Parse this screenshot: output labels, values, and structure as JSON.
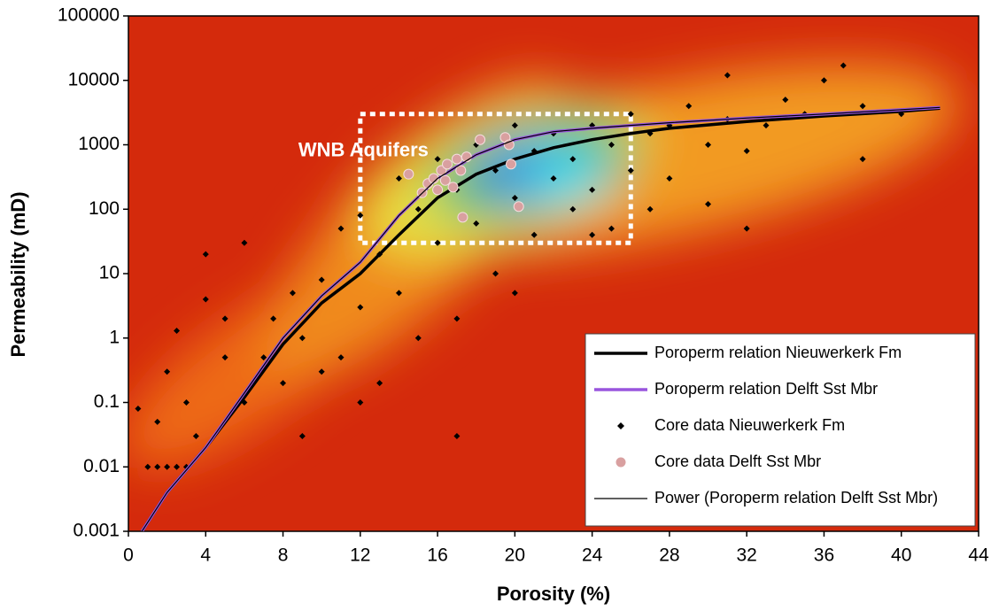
{
  "chart_data": {
    "type": "scatter",
    "x_label": "Porosity (%)",
    "y_label": "Permeability (mD)",
    "xlim": [
      0,
      44
    ],
    "ylim": [
      0.001,
      100000
    ],
    "y_scale": "log",
    "xticks": [
      0,
      4,
      8,
      12,
      16,
      20,
      24,
      28,
      32,
      36,
      40,
      44
    ],
    "yticks": [
      0.001,
      0.01,
      0.1,
      1,
      10,
      100,
      1000,
      10000,
      100000
    ],
    "legend_position": "lower right",
    "annotation": {
      "text": "WNB Aquifers",
      "xlim": [
        12,
        26
      ],
      "ylim": [
        30,
        3000
      ],
      "color": "#ffffff"
    },
    "series": [
      {
        "name": "Poroperm relation Nieuwerkerk Fm",
        "style": "line",
        "color": "#000000",
        "width": 3.5,
        "x": [
          0.7,
          2,
          4,
          6,
          8,
          10,
          12,
          14,
          16,
          18,
          20,
          22,
          24,
          26,
          28,
          32,
          36,
          40,
          42
        ],
        "values": [
          0.001,
          0.004,
          0.02,
          0.12,
          0.8,
          3.5,
          10,
          40,
          150,
          350,
          600,
          900,
          1200,
          1500,
          1800,
          2300,
          2800,
          3300,
          3700
        ]
      },
      {
        "name": "Poroperm relation Delft Sst Mbr",
        "style": "line",
        "color": "#9955dd",
        "width": 3.5,
        "x": [
          0.7,
          2,
          4,
          6,
          8,
          10,
          12,
          14,
          16,
          18,
          20,
          22,
          24,
          26,
          28,
          32,
          36,
          40,
          42
        ],
        "values": [
          0.001,
          0.004,
          0.02,
          0.14,
          1,
          4.5,
          15,
          80,
          300,
          700,
          1200,
          1600,
          1800,
          2000,
          2200,
          2600,
          3000,
          3500,
          3800
        ]
      },
      {
        "name": "Core data Nieuwerkerk Fm",
        "style": "scatter",
        "marker": "diamond",
        "color": "#000000",
        "x": [
          1,
          1.5,
          2,
          2.5,
          3,
          0.5,
          1.5,
          2,
          2.5,
          3,
          3.5,
          4,
          4,
          5,
          5,
          6,
          6,
          7,
          7.5,
          8,
          8.5,
          9,
          9,
          10,
          10,
          11,
          11,
          12,
          12,
          13,
          13,
          14,
          14,
          15,
          15,
          16,
          16,
          17,
          17,
          18,
          18,
          19,
          19,
          20,
          20,
          21,
          21,
          22,
          22,
          23,
          23,
          24,
          24,
          25,
          25,
          26,
          26,
          27,
          27,
          28,
          28,
          29,
          30,
          30,
          31,
          31,
          32,
          33,
          34,
          35,
          36,
          37,
          38,
          38,
          40,
          12,
          17,
          20,
          24,
          32
        ],
        "values": [
          0.01,
          0.01,
          0.01,
          0.01,
          0.01,
          0.08,
          0.05,
          0.3,
          1.3,
          0.1,
          0.03,
          4,
          20,
          0.5,
          2,
          0.1,
          30,
          0.5,
          2,
          0.2,
          5,
          0.03,
          1,
          0.3,
          8,
          50,
          0.5,
          3,
          80,
          20,
          0.2,
          300,
          5,
          100,
          1,
          600,
          30,
          200,
          2,
          1000,
          60,
          400,
          10,
          2000,
          150,
          800,
          40,
          300,
          1500,
          600,
          100,
          2000,
          200,
          1000,
          50,
          3000,
          400,
          1500,
          100,
          2000,
          300,
          4000,
          1000,
          120,
          12000,
          2500,
          800,
          2000,
          5000,
          3000,
          10000,
          17000,
          4000,
          600,
          3000,
          0.1,
          0.03,
          5,
          40,
          50
        ]
      },
      {
        "name": "Core data Delft Sst Mbr",
        "style": "scatter",
        "marker": "circle",
        "color": "#d9a0a0",
        "x": [
          14.5,
          15.2,
          15.5,
          15.8,
          16,
          16.2,
          16.5,
          16.8,
          17,
          17.2,
          17.5,
          17.3,
          18.2,
          19.5,
          19.7,
          19.8,
          20.2,
          16.4
        ],
        "values": [
          350,
          180,
          250,
          300,
          200,
          400,
          500,
          220,
          600,
          400,
          650,
          75,
          1200,
          1300,
          1000,
          500,
          110,
          280
        ]
      },
      {
        "name": "Power (Poroperm relation Delft Sst Mbr)",
        "style": "line",
        "color": "#000000",
        "width": 1.2,
        "x": [
          0.7,
          2,
          4,
          6,
          8,
          10,
          12,
          14,
          16,
          18,
          20,
          22,
          24,
          26,
          28,
          32,
          36,
          40,
          42
        ],
        "values": [
          0.001,
          0.004,
          0.02,
          0.14,
          1,
          4.5,
          15,
          80,
          300,
          700,
          1200,
          1600,
          1800,
          2000,
          2200,
          2600,
          3000,
          3500,
          3800
        ]
      }
    ]
  }
}
